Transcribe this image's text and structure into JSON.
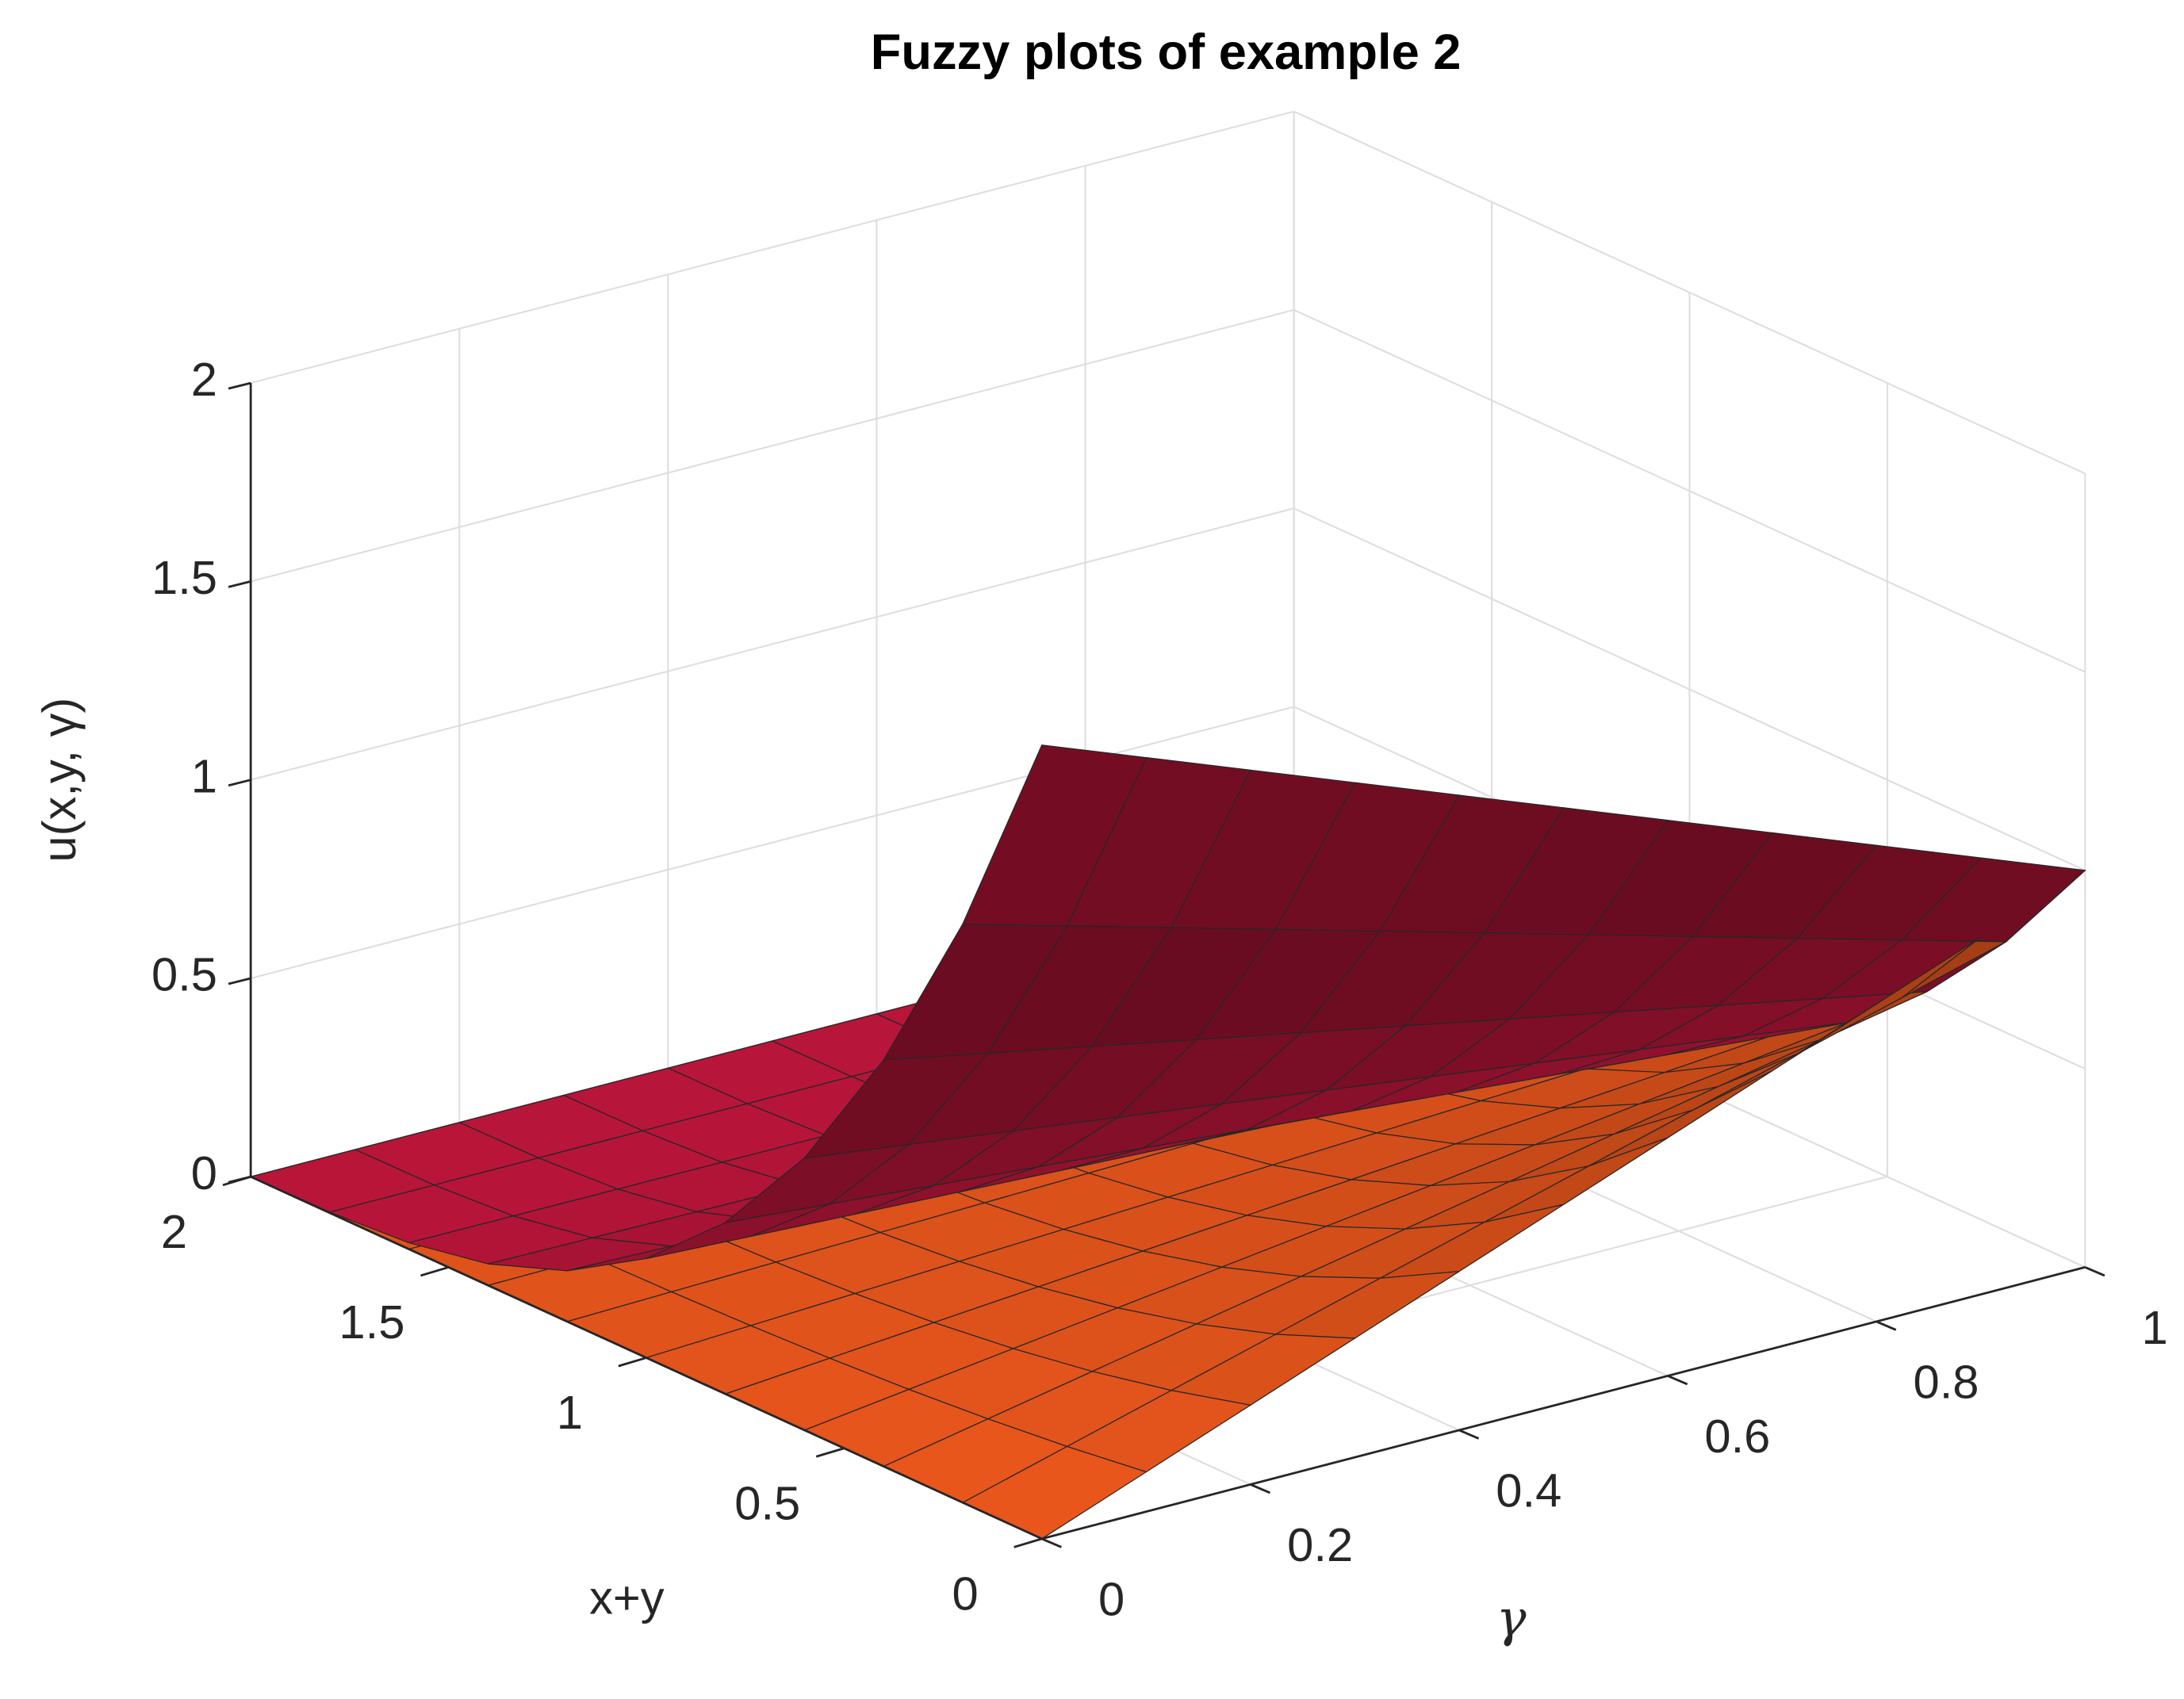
{
  "chart_data": {
    "type": "surface",
    "title": "Fuzzy plots of example 2",
    "xlabel": "x+y",
    "ylabel": "γ",
    "zlabel": "u(x,y, γ)",
    "x": [
      0,
      0.2,
      0.4,
      0.6,
      0.8,
      1.0,
      1.2,
      1.4,
      1.6,
      1.8,
      2.0
    ],
    "y": [
      0,
      0.1,
      0.2,
      0.3,
      0.4,
      0.5,
      0.6,
      0.7,
      0.8,
      0.9,
      1.0
    ],
    "xlim": [
      0,
      2
    ],
    "xticks": [
      0,
      0.5,
      1,
      1.5,
      2
    ],
    "ylim": [
      0,
      1
    ],
    "yticks": [
      0,
      0.2,
      0.4,
      0.6,
      0.8,
      1
    ],
    "zlim": [
      0,
      2
    ],
    "zticks": [
      0,
      0.5,
      1,
      1.5,
      2
    ],
    "grid": true,
    "series": [
      {
        "color": "#e8561c",
        "values": [
          [
            0,
            0.1,
            0.2,
            0.3,
            0.4,
            0.5,
            0.6,
            0.7,
            0.8,
            0.9,
            1
          ],
          [
            0,
            0.0729,
            0.1458,
            0.2187,
            0.2916,
            0.3645,
            0.4374,
            0.5103,
            0.5832,
            0.6561,
            0.729
          ],
          [
            0,
            0.0512,
            0.1024,
            0.1536,
            0.2048,
            0.256,
            0.3072,
            0.3584,
            0.4096,
            0.4608,
            0.512
          ],
          [
            0,
            0.0343,
            0.0686,
            0.1029,
            0.1372,
            0.1715,
            0.2058,
            0.2401,
            0.2744,
            0.3087,
            0.343
          ],
          [
            0,
            0.0216,
            0.0432,
            0.0648,
            0.0864,
            0.108,
            0.1296,
            0.1512,
            0.1728,
            0.1944,
            0.216
          ],
          [
            0,
            0.0125,
            0.025,
            0.0375,
            0.05,
            0.0625,
            0.075,
            0.0875,
            0.1,
            0.1125,
            0.125
          ],
          [
            0,
            0.0064,
            0.0128,
            0.0192,
            0.0256,
            0.032,
            0.0384,
            0.0448,
            0.0512,
            0.0576,
            0.064
          ],
          [
            0,
            0.0027,
            0.0054,
            0.0081,
            0.0108,
            0.0135,
            0.0162,
            0.0189,
            0.0216,
            0.0243,
            0.027
          ],
          [
            0,
            0.0008,
            0.0016,
            0.0024,
            0.0032,
            0.004,
            0.0048,
            0.0056,
            0.0064,
            0.0072,
            0.008
          ],
          [
            0,
            0.0001,
            0.0002,
            0.0003,
            0.0004,
            0.0005,
            0.0006,
            0.0007,
            0.0008,
            0.0009,
            0.001
          ],
          [
            0,
            0,
            0,
            0,
            0,
            0,
            0,
            0,
            0,
            0,
            0
          ]
        ]
      },
      {
        "color": "#c0163c",
        "values": [
          [
            2,
            1.9,
            1.8,
            1.7,
            1.6,
            1.5,
            1.4,
            1.3,
            1.2,
            1.1,
            1
          ],
          [
            1.458,
            1.3851,
            1.3122,
            1.2393,
            1.1664,
            1.0935,
            1.0206,
            0.9477,
            0.8748,
            0.8019,
            0.729
          ],
          [
            1.024,
            0.9728,
            0.9216,
            0.8704,
            0.8192,
            0.768,
            0.7168,
            0.6656,
            0.6144,
            0.5632,
            0.512
          ],
          [
            0.686,
            0.6517,
            0.6174,
            0.5831,
            0.5488,
            0.5145,
            0.4802,
            0.4459,
            0.4116,
            0.3773,
            0.343
          ],
          [
            0.432,
            0.4104,
            0.3888,
            0.3672,
            0.3456,
            0.324,
            0.3024,
            0.2808,
            0.2592,
            0.2376,
            0.216
          ],
          [
            0.25,
            0.2375,
            0.225,
            0.2125,
            0.2,
            0.1875,
            0.175,
            0.1625,
            0.15,
            0.1375,
            0.125
          ],
          [
            0.128,
            0.1216,
            0.1152,
            0.1088,
            0.1024,
            0.096,
            0.0896,
            0.0832,
            0.0768,
            0.0704,
            0.064
          ],
          [
            0.054,
            0.0513,
            0.0486,
            0.0459,
            0.0432,
            0.0405,
            0.0378,
            0.0351,
            0.0324,
            0.0297,
            0.027
          ],
          [
            0.016,
            0.0152,
            0.0144,
            0.0136,
            0.0128,
            0.012,
            0.0112,
            0.0104,
            0.0096,
            0.0088,
            0.008
          ],
          [
            0.002,
            0.0019,
            0.0018,
            0.0017,
            0.0016,
            0.0015,
            0.0014,
            0.0013,
            0.0012,
            0.0011,
            0.001
          ],
          [
            0,
            0,
            0,
            0,
            0,
            0,
            0,
            0,
            0,
            0,
            0
          ]
        ]
      }
    ]
  }
}
